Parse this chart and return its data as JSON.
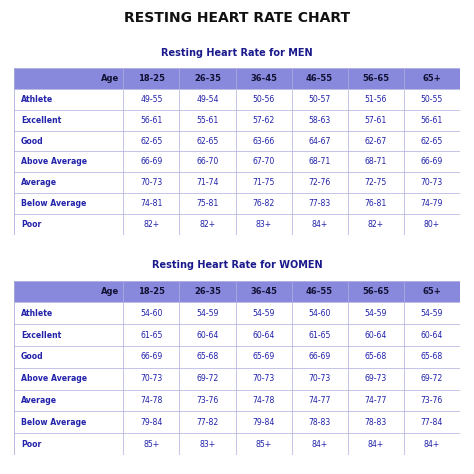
{
  "title": "RESTING HEART RATE CHART",
  "title_color": "#111111",
  "background_color": "#ffffff",
  "header_bg": "#8888dd",
  "header_text_color": "#1a1a8c",
  "cell_text_color": "#2222aa",
  "border_color": "#aaaadd",
  "outer_border_color": "#aaaacc",
  "men_title": "Resting Heart Rate for MEN",
  "women_title": "Resting Heart Rate for WOMEN",
  "col_headers": [
    "Age",
    "18-25",
    "26-35",
    "36-45",
    "46-55",
    "56-65",
    "65+"
  ],
  "men_rows": [
    [
      "Athlete",
      "49-55",
      "49-54",
      "50-56",
      "50-57",
      "51-56",
      "50-55"
    ],
    [
      "Excellent",
      "56-61",
      "55-61",
      "57-62",
      "58-63",
      "57-61",
      "56-61"
    ],
    [
      "Good",
      "62-65",
      "62-65",
      "63-66",
      "64-67",
      "62-67",
      "62-65"
    ],
    [
      "Above Average",
      "66-69",
      "66-70",
      "67-70",
      "68-71",
      "68-71",
      "66-69"
    ],
    [
      "Average",
      "70-73",
      "71-74",
      "71-75",
      "72-76",
      "72-75",
      "70-73"
    ],
    [
      "Below Average",
      "74-81",
      "75-81",
      "76-82",
      "77-83",
      "76-81",
      "74-79"
    ],
    [
      "Poor",
      "82+",
      "82+",
      "83+",
      "84+",
      "82+",
      "80+"
    ]
  ],
  "women_rows": [
    [
      "Athlete",
      "54-60",
      "54-59",
      "54-59",
      "54-60",
      "54-59",
      "54-59"
    ],
    [
      "Excellent",
      "61-65",
      "60-64",
      "60-64",
      "61-65",
      "60-64",
      "60-64"
    ],
    [
      "Good",
      "66-69",
      "65-68",
      "65-69",
      "66-69",
      "65-68",
      "65-68"
    ],
    [
      "Above Average",
      "70-73",
      "69-72",
      "70-73",
      "70-73",
      "69-73",
      "69-72"
    ],
    [
      "Average",
      "74-78",
      "73-76",
      "74-78",
      "74-77",
      "74-77",
      "73-76"
    ],
    [
      "Below Average",
      "79-84",
      "77-82",
      "79-84",
      "78-83",
      "78-83",
      "77-84"
    ],
    [
      "Poor",
      "85+",
      "83+",
      "85+",
      "84+",
      "84+",
      "84+"
    ]
  ],
  "fig_width": 4.74,
  "fig_height": 4.74,
  "dpi": 100
}
